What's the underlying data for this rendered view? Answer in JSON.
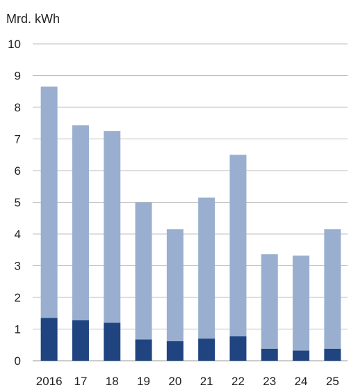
{
  "chart_data": {
    "type": "bar",
    "stacked": true,
    "ylabel": "Mrd. kWh",
    "ylim": [
      0,
      10
    ],
    "yticks": [
      0,
      1,
      2,
      3,
      4,
      5,
      6,
      7,
      8,
      9,
      10
    ],
    "grid": true,
    "categories": [
      "2016",
      "17",
      "18",
      "19",
      "20",
      "21",
      "22",
      "23",
      "24",
      "25"
    ],
    "series": [
      {
        "color": "#1f4480",
        "values": [
          1.35,
          1.28,
          1.2,
          0.67,
          0.62,
          0.7,
          0.77,
          0.38,
          0.32,
          0.38
        ]
      },
      {
        "color": "#9aafcf",
        "values": [
          7.3,
          6.15,
          6.05,
          4.33,
          3.53,
          4.45,
          5.73,
          2.98,
          3.0,
          3.77
        ]
      }
    ],
    "totals": [
      8.65,
      7.43,
      7.25,
      5.0,
      4.15,
      5.15,
      6.5,
      3.36,
      3.32,
      4.15
    ]
  }
}
